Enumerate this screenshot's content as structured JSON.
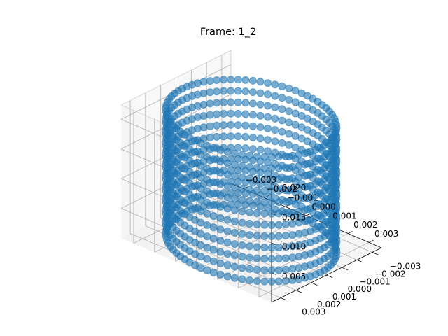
{
  "chart_data": {
    "type": "scatter",
    "projection": "3d",
    "title": "Frame: 1_2",
    "xlabel": "",
    "ylabel": "",
    "zlabel": "",
    "grid": true,
    "legend": "none",
    "xlim": [
      -0.0036,
      0.0036
    ],
    "ylim": [
      -0.0036,
      0.0036
    ],
    "zlim": [
      0.0,
      0.0224
    ],
    "x_ticks": [
      {
        "value": -0.003,
        "label": "−0.003"
      },
      {
        "value": -0.002,
        "label": "−0.002"
      },
      {
        "value": -0.001,
        "label": "−0.001"
      },
      {
        "value": 0.0,
        "label": "0.000"
      },
      {
        "value": 0.001,
        "label": "0.001"
      },
      {
        "value": 0.002,
        "label": "0.002"
      },
      {
        "value": 0.003,
        "label": "0.003"
      }
    ],
    "y_ticks": [
      {
        "value": -0.003,
        "label": "−0.003"
      },
      {
        "value": -0.002,
        "label": "−0.002"
      },
      {
        "value": -0.001,
        "label": "−0.001"
      },
      {
        "value": 0.0,
        "label": "0.000"
      },
      {
        "value": 0.001,
        "label": "0.001"
      },
      {
        "value": 0.002,
        "label": "0.002"
      },
      {
        "value": 0.003,
        "label": "0.003"
      }
    ],
    "z_ticks": [
      {
        "value": 0.005,
        "label": "0.005"
      },
      {
        "value": 0.01,
        "label": "0.010"
      },
      {
        "value": 0.015,
        "label": "0.015"
      },
      {
        "value": 0.02,
        "label": "0.020"
      }
    ],
    "series": [
      {
        "shape": "cylinder",
        "color": "#1f77b4",
        "marker_alpha": 0.6,
        "center": [
          0.0,
          0.0
        ],
        "radius": 0.0033,
        "z_range": [
          0.0,
          0.021
        ],
        "angular_points": 72,
        "height_points": 12
      }
    ]
  }
}
